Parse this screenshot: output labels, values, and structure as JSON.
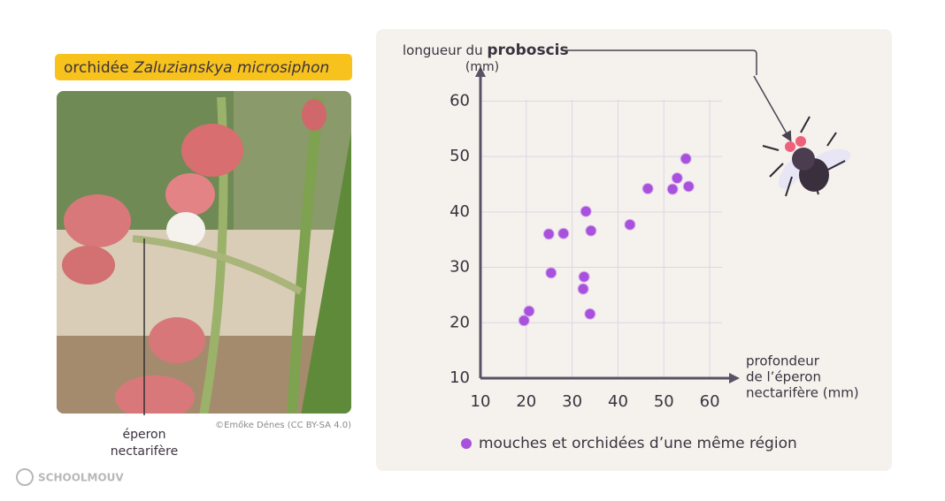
{
  "photo": {
    "title_plain": "orchidée",
    "title_italic": "Zaluzianskya microsiphon",
    "spur_label": [
      "éperon",
      "nectarifère"
    ],
    "credit": "©Emőke Dénes (CC BY-SA 4.0)"
  },
  "logo": "SCHOOLMOUV",
  "chart_data": {
    "type": "scatter",
    "ylabel": [
      "longueur du",
      "proboscis",
      "(mm)"
    ],
    "xlabel": [
      "profondeur",
      "de l’éperon",
      "nectarifère (mm)"
    ],
    "xlim": [
      10,
      65
    ],
    "ylim": [
      10,
      65
    ],
    "xticks": [
      10,
      20,
      30,
      40,
      50,
      60
    ],
    "yticks": [
      10,
      20,
      30,
      40,
      50,
      60
    ],
    "grid": true,
    "series": [
      {
        "name": "mouches et orchidées d’une même région",
        "color": "#a851dc",
        "x": [
          19.5,
          20.6,
          24.9,
          25.4,
          28.1,
          33.0,
          34.1,
          32.6,
          32.4,
          33.9,
          42.6,
          46.5,
          51.9,
          52.9,
          54.8,
          55.4
        ],
        "values": [
          20.4,
          22.1,
          36.0,
          29.0,
          36.1,
          40.1,
          36.6,
          28.3,
          26.1,
          21.6,
          37.7,
          44.2,
          44.1,
          46.1,
          49.6,
          44.6
        ]
      }
    ]
  }
}
